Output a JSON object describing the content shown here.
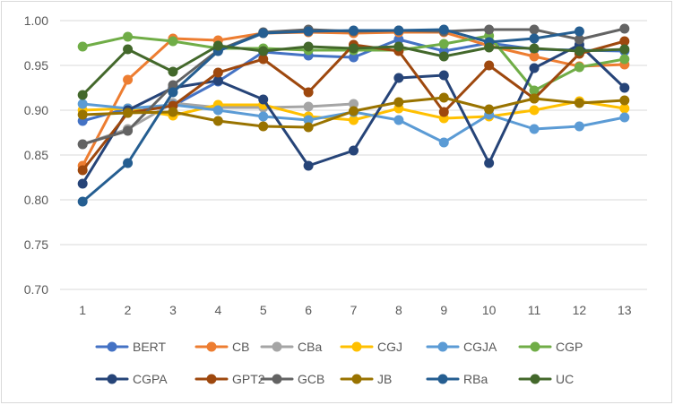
{
  "chart_data": {
    "type": "line",
    "categories": [
      "1",
      "2",
      "3",
      "4",
      "5",
      "6",
      "7",
      "8",
      "9",
      "10",
      "11",
      "12",
      "13"
    ],
    "ylim": [
      0.7,
      1.0
    ],
    "yticks": [
      "0.70",
      "0.75",
      "0.80",
      "0.85",
      "0.90",
      "0.95",
      "1.00"
    ],
    "ytick_values": [
      0.7,
      0.75,
      0.8,
      0.85,
      0.9,
      0.95,
      1.0
    ],
    "grid": true,
    "legend_position": "bottom",
    "series": [
      {
        "name": "BERT",
        "color": "#4472C4",
        "values": [
          0.888,
          0.902,
          0.905,
          0.932,
          0.965,
          0.961,
          0.959,
          0.979,
          0.966,
          0.975,
          0.968,
          0.967,
          0.966
        ]
      },
      {
        "name": "CB",
        "color": "#ED7D31",
        "values": [
          0.838,
          0.934,
          0.98,
          0.978,
          0.986,
          0.987,
          0.986,
          0.987,
          0.987,
          0.972,
          0.96,
          0.949,
          0.951
        ]
      },
      {
        "name": "CBa",
        "color": "#A5A5A5",
        "values": [
          0.862,
          0.879,
          0.908,
          0.903,
          0.903,
          0.904,
          0.907,
          null,
          null,
          null,
          null,
          null,
          null
        ]
      },
      {
        "name": "CGJ",
        "color": "#FFC000",
        "values": [
          0.9,
          0.902,
          0.894,
          0.906,
          0.906,
          0.893,
          0.889,
          0.902,
          0.891,
          0.893,
          0.9,
          0.91,
          0.902
        ]
      },
      {
        "name": "CGJA",
        "color": "#5B9BD5",
        "values": [
          0.907,
          0.902,
          0.906,
          0.9,
          0.893,
          0.889,
          0.898,
          0.889,
          0.864,
          0.895,
          0.879,
          0.882,
          0.892
        ]
      },
      {
        "name": "CGP",
        "color": "#70AD47",
        "values": [
          0.971,
          0.982,
          0.977,
          0.969,
          0.969,
          0.967,
          0.967,
          0.967,
          0.974,
          0.983,
          0.922,
          0.948,
          0.957
        ]
      },
      {
        "name": "CGPA",
        "color": "#264478",
        "values": [
          0.818,
          0.9,
          0.925,
          0.933,
          0.912,
          0.838,
          0.855,
          0.936,
          0.939,
          0.841,
          0.947,
          0.973,
          0.925
        ]
      },
      {
        "name": "GPT2",
        "color": "#9E480E",
        "values": [
          0.833,
          0.897,
          0.905,
          0.942,
          0.957,
          0.92,
          0.973,
          0.966,
          0.898,
          0.95,
          0.913,
          0.963,
          0.977
        ]
      },
      {
        "name": "GCB",
        "color": "#636363",
        "values": [
          0.862,
          0.877,
          0.928,
          0.967,
          0.987,
          0.99,
          0.988,
          0.989,
          0.988,
          0.99,
          0.99,
          0.979,
          0.991
        ]
      },
      {
        "name": "JB",
        "color": "#997300",
        "values": [
          0.895,
          0.897,
          0.898,
          0.888,
          0.882,
          0.881,
          0.899,
          0.909,
          0.914,
          0.901,
          0.913,
          0.908,
          0.911
        ]
      },
      {
        "name": "RBa",
        "color": "#255E91",
        "values": [
          0.798,
          0.841,
          0.92,
          0.966,
          0.986,
          0.988,
          0.989,
          0.989,
          0.99,
          0.976,
          0.98,
          0.988,
          null
        ]
      },
      {
        "name": "UC",
        "color": "#43682B",
        "values": [
          0.917,
          0.968,
          0.943,
          0.972,
          0.966,
          0.971,
          0.969,
          0.971,
          0.96,
          0.97,
          0.969,
          0.966,
          0.968
        ]
      }
    ]
  }
}
